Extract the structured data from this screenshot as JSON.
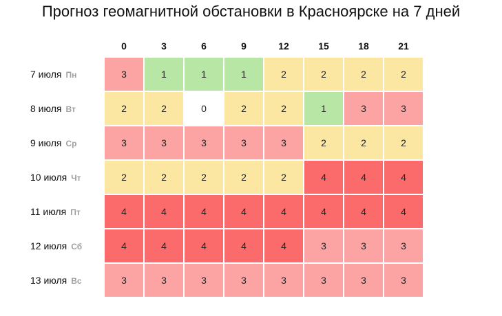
{
  "title": "Прогноз геомагнитной обстановки в Красноярске на 7 дней",
  "colors": {
    "0": "#ffffff",
    "1": "#b8e6a4",
    "2": "#fbe6a2",
    "3": "#fca4a4",
    "4": "#fc6b6b"
  },
  "chart_data": {
    "type": "heatmap",
    "title": "Прогноз геомагнитной обстановки в Красноярске на 7 дней",
    "columns": [
      "0",
      "3",
      "6",
      "9",
      "12",
      "15",
      "18",
      "21"
    ],
    "rows": [
      {
        "date": "7 июля",
        "dow": "Пн",
        "values": [
          3,
          1,
          1,
          1,
          2,
          2,
          2,
          2
        ]
      },
      {
        "date": "8 июля",
        "dow": "Вт",
        "values": [
          2,
          2,
          0,
          2,
          2,
          1,
          3,
          3
        ]
      },
      {
        "date": "9 июля",
        "dow": "Ср",
        "values": [
          3,
          3,
          3,
          3,
          3,
          2,
          2,
          2
        ]
      },
      {
        "date": "10 июля",
        "dow": "Чт",
        "values": [
          2,
          2,
          2,
          2,
          2,
          4,
          4,
          4
        ]
      },
      {
        "date": "11 июля",
        "dow": "Пт",
        "values": [
          4,
          4,
          4,
          4,
          4,
          4,
          4,
          4
        ]
      },
      {
        "date": "12 июля",
        "dow": "Сб",
        "values": [
          4,
          4,
          4,
          4,
          4,
          3,
          3,
          3
        ]
      },
      {
        "date": "13 июля",
        "dow": "Вс",
        "values": [
          3,
          3,
          3,
          3,
          3,
          3,
          3,
          3
        ]
      }
    ]
  }
}
